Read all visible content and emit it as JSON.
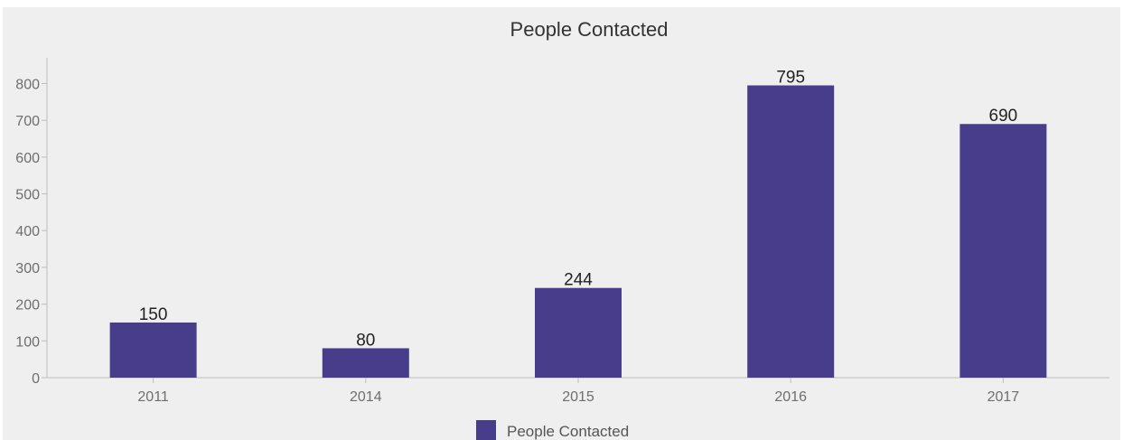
{
  "chart_data": {
    "type": "bar",
    "title": "People Contacted",
    "categories": [
      "2011",
      "2014",
      "2015",
      "2016",
      "2017"
    ],
    "series": [
      {
        "name": "People Contacted",
        "values": [
          150,
          80,
          244,
          795,
          690
        ]
      }
    ],
    "data_labels": [
      "150",
      "80",
      "244",
      "795",
      "690"
    ],
    "ylim": [
      0,
      870
    ],
    "yticks": [
      0,
      100,
      200,
      300,
      400,
      500,
      600,
      700,
      800
    ],
    "ytick_labels": [
      "0",
      "100",
      "200",
      "300",
      "400",
      "500",
      "600",
      "700",
      "800"
    ],
    "xlabel": "",
    "ylabel": "",
    "legend_position": "bottom-center",
    "grid": false,
    "colors": {
      "bar": "#483d8b",
      "background": "#efefef",
      "axis": "#bdbdbd"
    }
  }
}
